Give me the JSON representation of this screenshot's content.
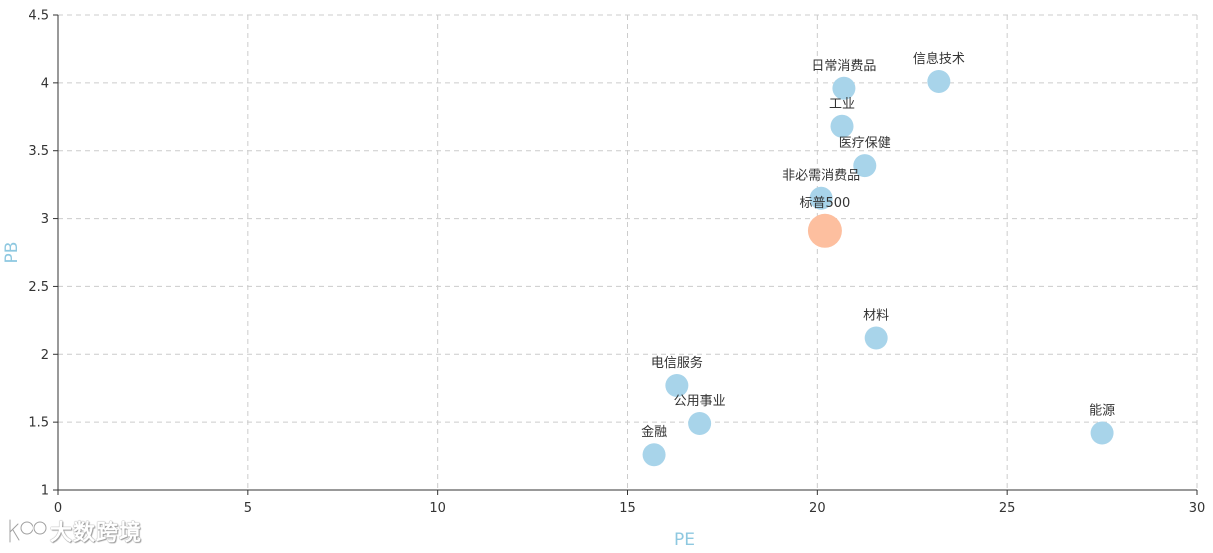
{
  "chart_data": {
    "type": "scatter",
    "title": "",
    "xlabel": "PE",
    "ylabel": "PB",
    "xlim": [
      0,
      30
    ],
    "ylim": [
      1,
      4.5
    ],
    "xticks": [
      0,
      5,
      10,
      15,
      20,
      25,
      30
    ],
    "yticks": [
      1,
      1.5,
      2,
      2.5,
      3,
      3.5,
      4,
      4.5
    ],
    "grid": true,
    "axis_title_color": "#8ec8e0",
    "series": [
      {
        "color": "#a8d4ea",
        "points": [
          {
            "label": "信息技术",
            "x": 23.2,
            "y": 4.01
          },
          {
            "label": "日常消费品",
            "x": 20.7,
            "y": 3.96
          },
          {
            "label": "工业",
            "x": 20.65,
            "y": 3.68
          },
          {
            "label": "医疗保健",
            "x": 21.25,
            "y": 3.39
          },
          {
            "label": "非必需消费品",
            "x": 20.1,
            "y": 3.15
          },
          {
            "label": "材料",
            "x": 21.55,
            "y": 2.12
          },
          {
            "label": "电信服务",
            "x": 16.3,
            "y": 1.77
          },
          {
            "label": "公用事业",
            "x": 16.9,
            "y": 1.49
          },
          {
            "label": "金融",
            "x": 15.7,
            "y": 1.26
          },
          {
            "label": "能源",
            "x": 27.5,
            "y": 1.42
          }
        ]
      },
      {
        "color": "#fdbf9f",
        "points": [
          {
            "label": "标普500",
            "x": 20.2,
            "y": 2.91
          }
        ]
      }
    ]
  },
  "watermark": {
    "text": "大数跨境",
    "icon": "kds-logo-icon"
  }
}
